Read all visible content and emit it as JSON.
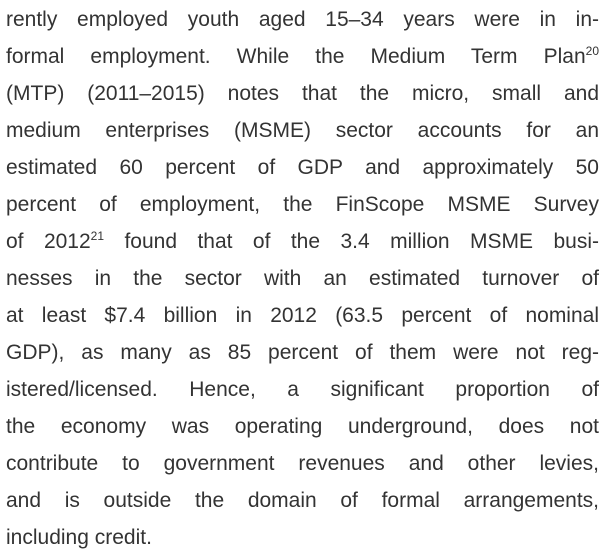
{
  "paragraph": {
    "lines": [
      {
        "text": "rently employed youth aged 15–34 years were in in-"
      },
      {
        "text": "formal employment. While the Medium Term Plan",
        "sup": "20"
      },
      {
        "text": "(MTP) (2011–2015) notes that the micro, small and"
      },
      {
        "text": "medium enterprises (MSME) sector accounts for an"
      },
      {
        "text": "estimated 60 percent of GDP and approximately 50"
      },
      {
        "text": "percent of employment, the FinScope MSME Survey"
      },
      {
        "text": "of 2012",
        "sup": "21",
        "rest": " found that of the 3.4 million MSME busi-"
      },
      {
        "text": "nesses in the sector with an estimated turnover of"
      },
      {
        "text": "at least $7.4 billion in 2012 (63.5 percent of nominal"
      },
      {
        "text": "GDP), as many as 85 percent of them were not reg-"
      },
      {
        "text": "istered/licensed. Hence, a significant proportion of"
      },
      {
        "text": "the economy was operating underground, does not"
      },
      {
        "text": "contribute to government revenues and other levies,"
      },
      {
        "text": "and is outside the domain of formal arrangements,"
      },
      {
        "text": "including credit."
      }
    ]
  }
}
